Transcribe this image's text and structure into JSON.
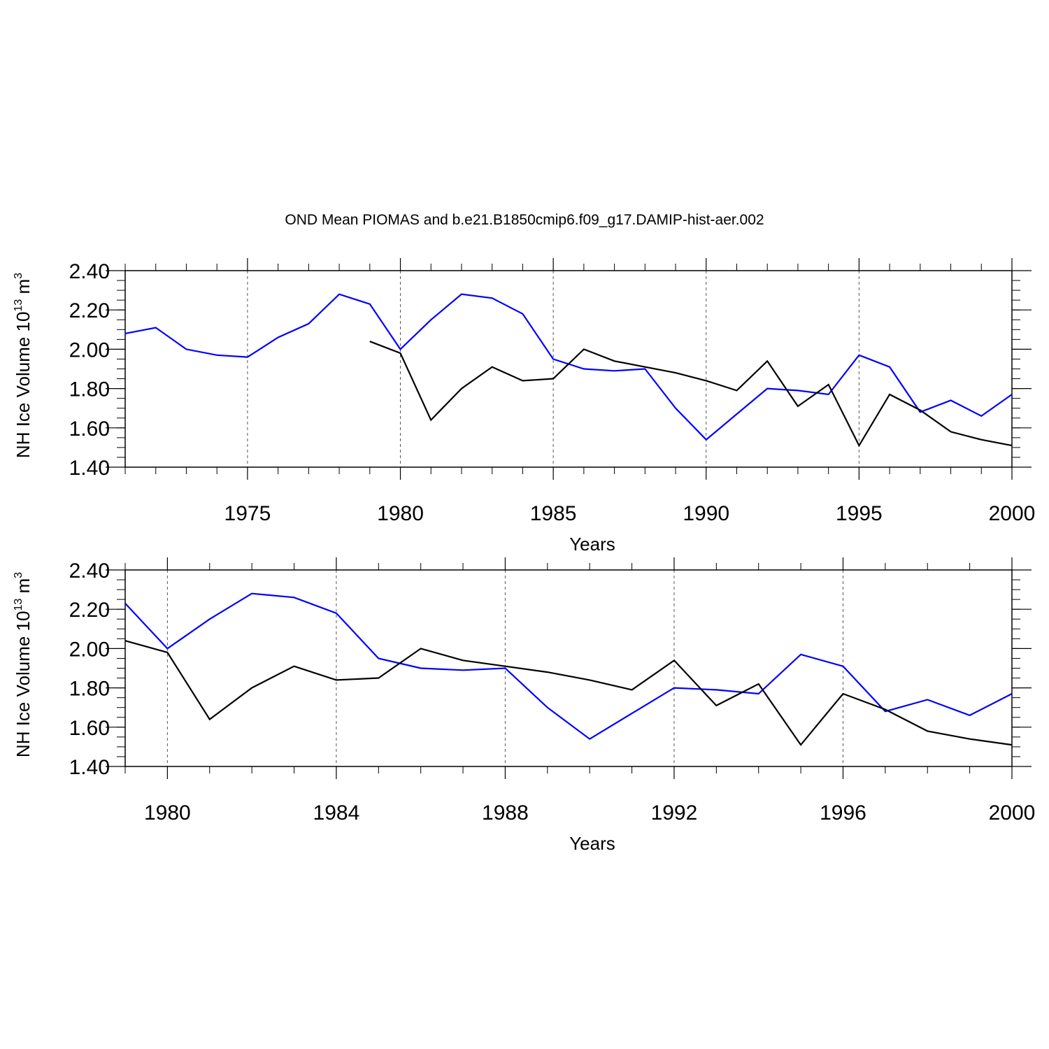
{
  "title": "OND Mean PIOMAS and b.e21.B1850cmip6.f09_g17.DAMIP-hist-aer.002",
  "colors": {
    "piomas": "#0000ff",
    "model": "#000000"
  },
  "chart_data": [
    {
      "type": "line",
      "xlabel": "Years",
      "ylabel_main": "NH Ice Volume 10",
      "ylabel_sup1": "13",
      "ylabel_mid": " m",
      "ylabel_sup2": "3",
      "xlim": [
        1971,
        2000
      ],
      "ylim": [
        1.4,
        2.4
      ],
      "xticks": [
        1975,
        1980,
        1985,
        1990,
        1995,
        2000
      ],
      "xtick_labels": [
        "1975",
        "1980",
        "1985",
        "1990",
        "1995",
        "2000"
      ],
      "yticks": [
        1.4,
        1.6,
        1.8,
        2.0,
        2.2,
        2.4
      ],
      "ytick_labels": [
        "1.40",
        "1.60",
        "1.80",
        "2.00",
        "2.20",
        "2.40"
      ],
      "grid": "dashed vertical lines at major x ticks",
      "series": [
        {
          "color": "#0000ff",
          "x": [
            1971,
            1972,
            1973,
            1974,
            1975,
            1976,
            1977,
            1978,
            1979,
            1980,
            1981,
            1982,
            1983,
            1984,
            1985,
            1986,
            1987,
            1988,
            1989,
            1990,
            1991,
            1992,
            1993,
            1994,
            1995,
            1996,
            1997,
            1998,
            1999,
            2000
          ],
          "y": [
            2.08,
            2.11,
            2.0,
            1.97,
            1.96,
            2.06,
            2.13,
            2.28,
            2.23,
            2.0,
            2.15,
            2.28,
            2.26,
            2.18,
            1.95,
            1.9,
            1.89,
            1.9,
            1.7,
            1.54,
            1.67,
            1.8,
            1.79,
            1.77,
            1.97,
            1.91,
            1.68,
            1.74,
            1.66,
            1.77
          ]
        },
        {
          "color": "#000000",
          "x": [
            1979,
            1980,
            1981,
            1982,
            1983,
            1984,
            1985,
            1986,
            1987,
            1988,
            1989,
            1990,
            1991,
            1992,
            1993,
            1994,
            1995,
            1996,
            1997,
            1998,
            1999,
            2000
          ],
          "y": [
            2.04,
            1.98,
            1.64,
            1.8,
            1.91,
            1.84,
            1.85,
            2.0,
            1.94,
            1.91,
            1.88,
            1.84,
            1.79,
            1.94,
            1.71,
            1.82,
            1.51,
            1.77,
            1.69,
            1.58,
            1.54,
            1.51
          ]
        }
      ]
    },
    {
      "type": "line",
      "xlabel": "Years",
      "ylabel_main": "NH Ice Volume 10",
      "ylabel_sup1": "13",
      "ylabel_mid": " m",
      "ylabel_sup2": "3",
      "xlim": [
        1979,
        2000
      ],
      "ylim": [
        1.4,
        2.4
      ],
      "xticks": [
        1980,
        1984,
        1988,
        1992,
        1996,
        2000
      ],
      "xtick_labels": [
        "1980",
        "1984",
        "1988",
        "1992",
        "1996",
        "2000"
      ],
      "yticks": [
        1.4,
        1.6,
        1.8,
        2.0,
        2.2,
        2.4
      ],
      "ytick_labels": [
        "1.40",
        "1.60",
        "1.80",
        "2.00",
        "2.20",
        "2.40"
      ],
      "grid": "dashed vertical lines at major x ticks",
      "series": [
        {
          "color": "#0000ff",
          "x": [
            1979,
            1980,
            1981,
            1982,
            1983,
            1984,
            1985,
            1986,
            1987,
            1988,
            1989,
            1990,
            1991,
            1992,
            1993,
            1994,
            1995,
            1996,
            1997,
            1998,
            1999,
            2000
          ],
          "y": [
            2.23,
            2.0,
            2.15,
            2.28,
            2.26,
            2.18,
            1.95,
            1.9,
            1.89,
            1.9,
            1.7,
            1.54,
            1.67,
            1.8,
            1.79,
            1.77,
            1.97,
            1.91,
            1.68,
            1.74,
            1.66,
            1.77
          ]
        },
        {
          "color": "#000000",
          "x": [
            1979,
            1980,
            1981,
            1982,
            1983,
            1984,
            1985,
            1986,
            1987,
            1988,
            1989,
            1990,
            1991,
            1992,
            1993,
            1994,
            1995,
            1996,
            1997,
            1998,
            1999,
            2000
          ],
          "y": [
            2.04,
            1.98,
            1.64,
            1.8,
            1.91,
            1.84,
            1.85,
            2.0,
            1.94,
            1.91,
            1.88,
            1.84,
            1.79,
            1.94,
            1.71,
            1.82,
            1.51,
            1.77,
            1.69,
            1.58,
            1.54,
            1.51
          ]
        }
      ]
    }
  ]
}
